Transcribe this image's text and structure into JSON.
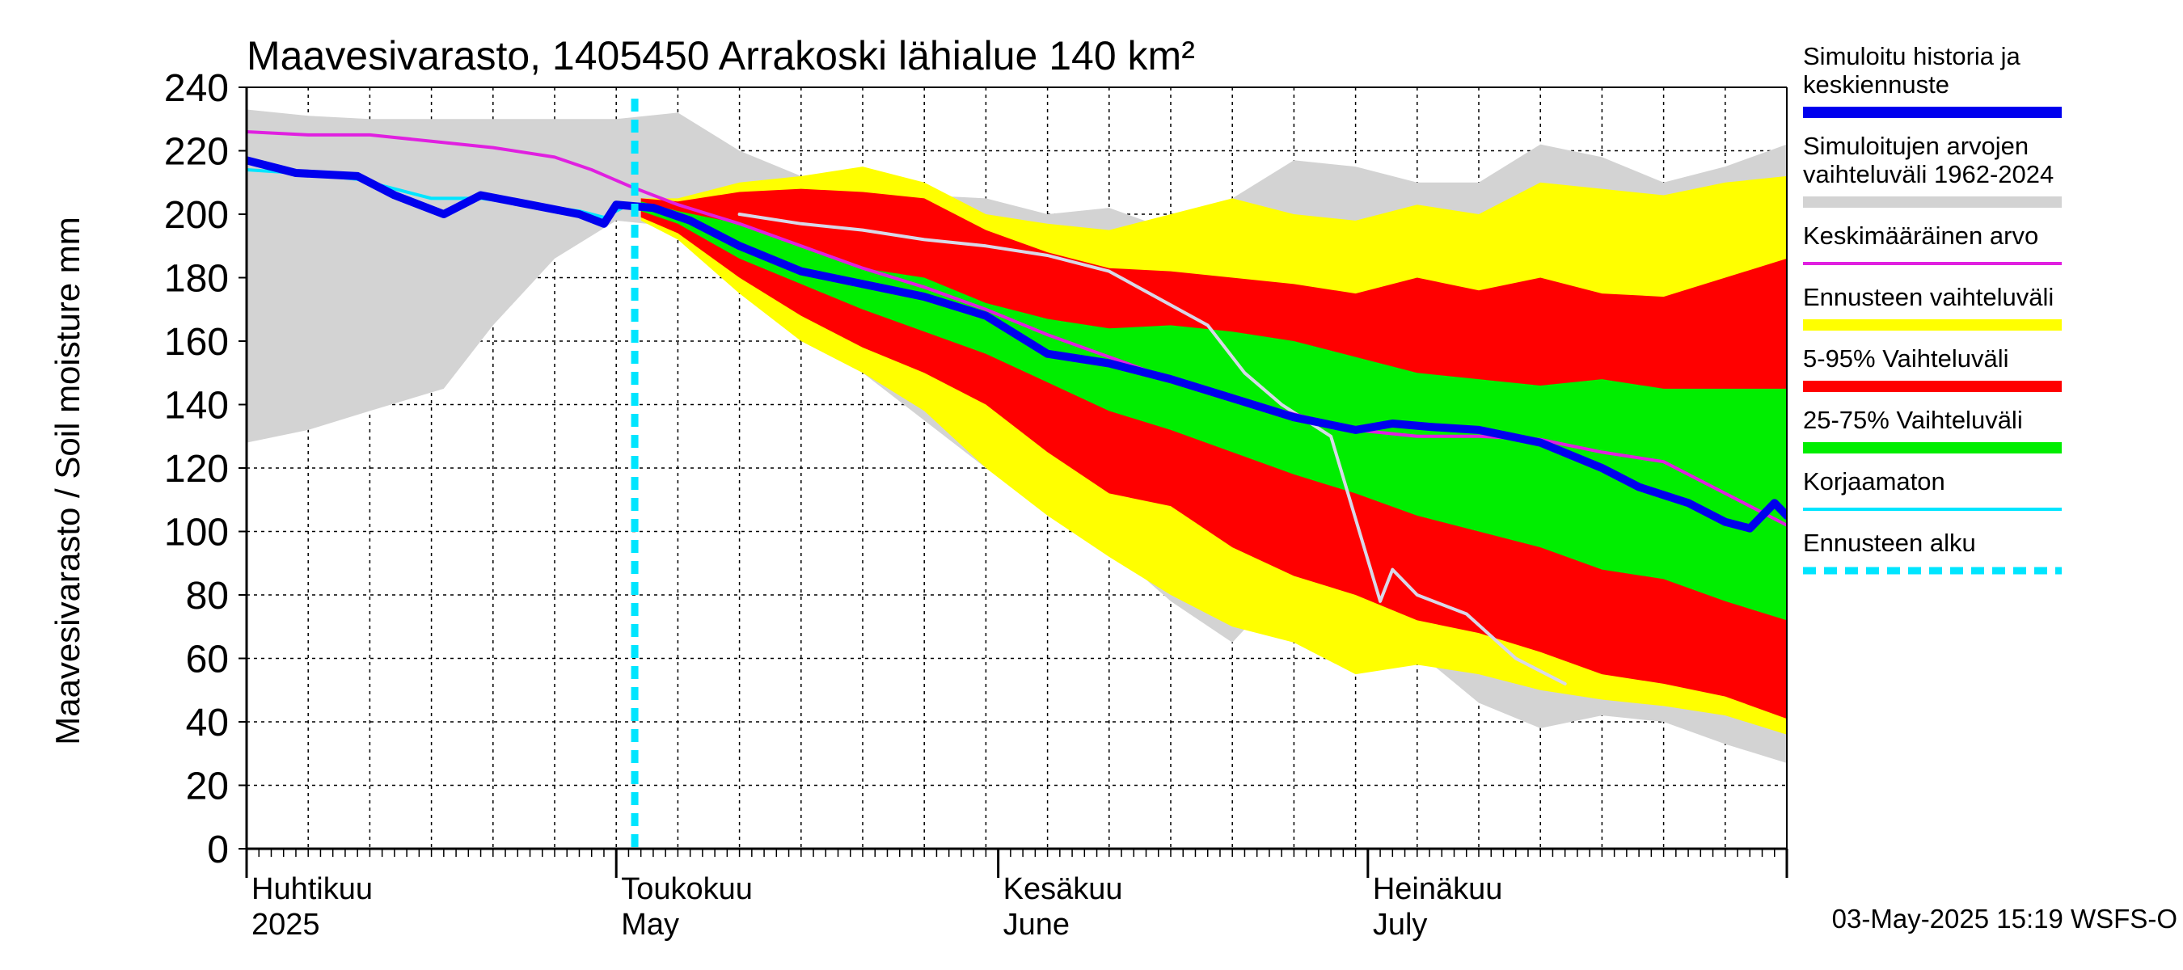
{
  "chart_data": {
    "type": "area",
    "title": "Maavesivarasto, 1405450 Arrakoski lähialue 140 km²",
    "ylabel": "Maavesivarasto / Soil moisture   mm",
    "ylim": [
      0,
      240
    ],
    "yticks": [
      0,
      20,
      40,
      60,
      80,
      100,
      120,
      140,
      160,
      180,
      200,
      220,
      240
    ],
    "x_range_days": [
      0,
      125
    ],
    "x_axis_note": "day 0 = 1 April 2025, day 125 = 4 August 2025",
    "forecast_start_day": 31.5,
    "month_labels": [
      {
        "day": 0,
        "fi": "Huhtikuu",
        "en": "2025"
      },
      {
        "day": 30,
        "fi": "Toukokuu",
        "en": "May"
      },
      {
        "day": 61,
        "fi": "Kesäkuu",
        "en": "June"
      },
      {
        "day": 91,
        "fi": "Heinäkuu",
        "en": "July"
      }
    ],
    "series": [
      {
        "name": "Simuloitujen arvojen vaihteluväli 1962-2024",
        "kind": "band",
        "color": "#d3d3d3",
        "x": [
          0,
          5,
          10,
          16,
          20,
          25,
          30,
          35,
          40,
          45,
          50,
          55,
          60,
          65,
          70,
          75,
          80,
          85,
          90,
          95,
          100,
          105,
          110,
          115,
          120,
          125
        ],
        "upper": [
          233,
          231,
          230,
          230,
          230,
          230,
          230,
          232,
          220,
          212,
          208,
          206,
          205,
          200,
          202,
          195,
          205,
          217,
          215,
          210,
          210,
          222,
          218,
          210,
          215,
          222
        ],
        "lower": [
          128,
          132,
          138,
          145,
          165,
          186,
          198,
          196,
          182,
          168,
          150,
          135,
          120,
          108,
          95,
          78,
          65,
          86,
          78,
          62,
          46,
          38,
          42,
          40,
          33,
          27
        ]
      },
      {
        "name": "Ennusteen vaihteluväli",
        "kind": "band",
        "color": "#ffff00",
        "x": [
          32,
          35,
          40,
          45,
          50,
          55,
          60,
          65,
          70,
          75,
          80,
          85,
          90,
          95,
          100,
          105,
          110,
          115,
          120,
          125
        ],
        "upper": [
          205,
          205,
          210,
          212,
          215,
          210,
          200,
          197,
          195,
          200,
          205,
          200,
          198,
          203,
          200,
          210,
          208,
          206,
          210,
          212
        ],
        "lower": [
          198,
          192,
          175,
          160,
          150,
          138,
          120,
          105,
          92,
          80,
          70,
          65,
          55,
          58,
          55,
          50,
          47,
          45,
          42,
          36
        ]
      },
      {
        "name": "5-95% Vaihteluväli",
        "kind": "band",
        "color": "#ff0000",
        "x": [
          32,
          35,
          40,
          45,
          50,
          55,
          60,
          65,
          70,
          75,
          80,
          85,
          90,
          95,
          100,
          105,
          110,
          115,
          120,
          125
        ],
        "upper": [
          205,
          204,
          207,
          208,
          207,
          205,
          195,
          188,
          183,
          182,
          180,
          178,
          175,
          180,
          176,
          180,
          175,
          174,
          180,
          186
        ],
        "lower": [
          199,
          194,
          180,
          168,
          158,
          150,
          140,
          125,
          112,
          108,
          95,
          86,
          80,
          72,
          68,
          62,
          55,
          52,
          48,
          41
        ]
      },
      {
        "name": "25-75% Vaihteluväli",
        "kind": "band",
        "color": "#00ee00",
        "x": [
          32,
          35,
          40,
          45,
          50,
          55,
          60,
          65,
          70,
          75,
          80,
          85,
          90,
          95,
          100,
          105,
          110,
          115,
          120,
          125
        ],
        "upper": [
          204,
          201,
          197,
          190,
          183,
          180,
          172,
          167,
          164,
          165,
          163,
          160,
          155,
          150,
          148,
          146,
          148,
          145,
          145,
          145
        ],
        "lower": [
          201,
          197,
          186,
          178,
          170,
          163,
          156,
          147,
          138,
          132,
          125,
          118,
          112,
          105,
          100,
          95,
          88,
          85,
          78,
          72
        ]
      },
      {
        "name": "Keskimääräinen arvo",
        "kind": "line",
        "color": "#e020e0",
        "width": 4,
        "x": [
          0,
          5,
          10,
          15,
          20,
          25,
          28,
          31,
          35,
          40,
          45,
          50,
          55,
          60,
          65,
          70,
          75,
          80,
          85,
          90,
          95,
          100,
          105,
          110,
          115,
          120,
          125
        ],
        "y": [
          226,
          225,
          225,
          223,
          221,
          218,
          214,
          209,
          203,
          197,
          190,
          183,
          177,
          170,
          162,
          155,
          148,
          142,
          137,
          132,
          130,
          130,
          129,
          125,
          122,
          112,
          102
        ]
      },
      {
        "name": "Korjaamaton",
        "kind": "line",
        "color": "#00e5ff",
        "width": 4,
        "x": [
          0,
          4,
          9,
          15,
          19,
          23,
          27,
          29,
          31
        ],
        "y": [
          214,
          213,
          211,
          205,
          205,
          203,
          201,
          199,
          203
        ]
      },
      {
        "name": "Simuloitu historia ja keskiennuste",
        "kind": "line",
        "color": "#0000ee",
        "width": 10,
        "x": [
          0,
          4,
          9,
          12,
          16,
          19,
          23,
          27,
          29,
          30,
          33,
          36,
          40,
          45,
          50,
          55,
          60,
          65,
          70,
          75,
          80,
          85,
          90,
          93,
          96,
          100,
          105,
          110,
          113,
          117,
          120,
          122,
          124,
          125
        ],
        "y": [
          217,
          213,
          212,
          206,
          200,
          206,
          203,
          200,
          197,
          203,
          202,
          198,
          190,
          182,
          178,
          174,
          168,
          156,
          153,
          148,
          142,
          136,
          132,
          134,
          133,
          132,
          128,
          120,
          114,
          109,
          103,
          101,
          109,
          105
        ]
      },
      {
        "name": "Sample trace",
        "kind": "line",
        "color": "#d8d8e8",
        "width": 4,
        "legend": false,
        "x": [
          40,
          45,
          50,
          55,
          60,
          65,
          70,
          78,
          81,
          84,
          88,
          92,
          93,
          95,
          99,
          103,
          107
        ],
        "y": [
          200,
          197,
          195,
          192,
          190,
          187,
          182,
          165,
          150,
          140,
          130,
          78,
          88,
          80,
          74,
          60,
          52
        ]
      }
    ],
    "legend": [
      {
        "label": "Simuloitu historia ja keskiennuste",
        "color": "#0000ee",
        "style": "solid-thick"
      },
      {
        "label": "Simuloitujen arvojen vaihteluväli 1962-2024",
        "color": "#d3d3d3",
        "style": "solid-thick"
      },
      {
        "label": "Keskimääräinen arvo",
        "color": "#e020e0",
        "style": "solid-thin"
      },
      {
        "label": "Ennusteen vaihteluväli",
        "color": "#ffff00",
        "style": "solid-thick"
      },
      {
        "label": "5-95% Vaihteluväli",
        "color": "#ff0000",
        "style": "solid-thick"
      },
      {
        "label": "25-75% Vaihteluväli",
        "color": "#00ee00",
        "style": "solid-thick"
      },
      {
        "label": "Korjaamaton",
        "color": "#00e5ff",
        "style": "solid-thin"
      },
      {
        "label": "Ennusteen alku",
        "color": "#00e5ff",
        "style": "dashed-thick"
      }
    ],
    "legend_placement": "right"
  },
  "header": {
    "title": "Maavesivarasto, 1405450 Arrakoski lähialue 140 km²"
  },
  "footer": {
    "timestamp": "03-May-2025 15:19 WSFS-O"
  }
}
